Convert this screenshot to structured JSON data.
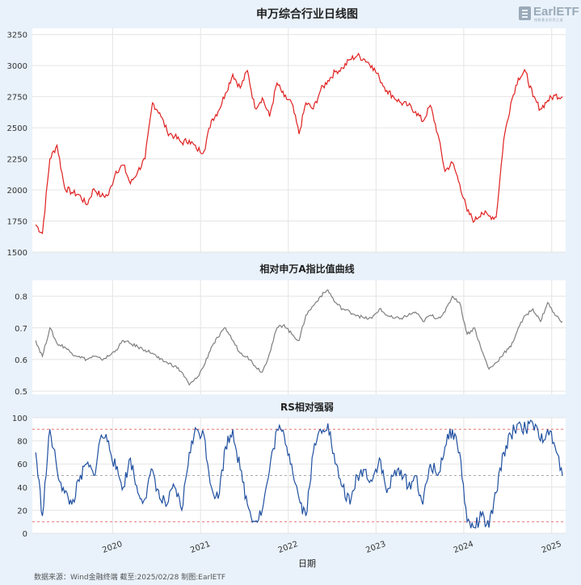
{
  "logo": {
    "name": "EarlETF",
    "tagline": "指数基金投资之道"
  },
  "footer": {
    "text": "数据来源：Wind金融终端 截至:2025/02/28 制图:EarlETF"
  },
  "chart_data": [
    {
      "type": "line",
      "title": "申万综合行业日线图",
      "ylim": [
        1500,
        3300
      ],
      "yticks": [
        1500,
        1750,
        2000,
        2250,
        2500,
        2750,
        3000,
        3250
      ],
      "color": "#e02020",
      "grid": true,
      "x_range": [
        "2019-02-01",
        "2025-02-28"
      ],
      "x": [
        "2019-02",
        "2019-03",
        "2019-04",
        "2019-05",
        "2019-06",
        "2019-07",
        "2019-08",
        "2019-09",
        "2019-10",
        "2019-11",
        "2019-12",
        "2020-01",
        "2020-02",
        "2020-03",
        "2020-04",
        "2020-05",
        "2020-06",
        "2020-07",
        "2020-08",
        "2020-09",
        "2020-10",
        "2020-11",
        "2020-12",
        "2021-01",
        "2021-02",
        "2021-03",
        "2021-04",
        "2021-05",
        "2021-06",
        "2021-07",
        "2021-08",
        "2021-09",
        "2021-10",
        "2021-11",
        "2021-12",
        "2022-01",
        "2022-02",
        "2022-03",
        "2022-04",
        "2022-05",
        "2022-06",
        "2022-07",
        "2022-08",
        "2022-09",
        "2022-10",
        "2022-11",
        "2022-12",
        "2023-01",
        "2023-02",
        "2023-03",
        "2023-04",
        "2023-05",
        "2023-06",
        "2023-07",
        "2023-08",
        "2023-09",
        "2023-10",
        "2023-11",
        "2023-12",
        "2024-01",
        "2024-02",
        "2024-03",
        "2024-04",
        "2024-05",
        "2024-06",
        "2024-07",
        "2024-08",
        "2024-09",
        "2024-10",
        "2024-11",
        "2024-12",
        "2025-01",
        "2025-02"
      ],
      "values": [
        1720,
        1650,
        2250,
        2360,
        2020,
        1980,
        1960,
        1880,
        2010,
        1950,
        1960,
        2150,
        2200,
        2050,
        2150,
        2250,
        2700,
        2620,
        2470,
        2430,
        2380,
        2400,
        2330,
        2310,
        2560,
        2630,
        2780,
        2930,
        2820,
        2960,
        2660,
        2740,
        2590,
        2860,
        2750,
        2700,
        2450,
        2700,
        2650,
        2800,
        2880,
        2950,
        2980,
        3050,
        3080,
        3050,
        3000,
        2900,
        2800,
        2750,
        2700,
        2680,
        2630,
        2550,
        2680,
        2450,
        2150,
        2220,
        2050,
        1830,
        1750,
        1820,
        1790,
        1780,
        2400,
        2700,
        2900,
        2950,
        2750,
        2650,
        2720,
        2760,
        2750
      ]
    },
    {
      "type": "line",
      "title": "相对申万A指比值曲线",
      "ylim": [
        0.49,
        0.85
      ],
      "yticks": [
        0.5,
        0.6,
        0.7,
        0.8
      ],
      "color": "#7f7f7f",
      "grid": true,
      "x_range": [
        "2019-02-01",
        "2025-02-28"
      ],
      "x": [
        "2019-02",
        "2019-03",
        "2019-04",
        "2019-05",
        "2019-06",
        "2019-07",
        "2019-08",
        "2019-09",
        "2019-10",
        "2019-11",
        "2019-12",
        "2020-01",
        "2020-02",
        "2020-03",
        "2020-04",
        "2020-05",
        "2020-06",
        "2020-07",
        "2020-08",
        "2020-09",
        "2020-10",
        "2020-11",
        "2020-12",
        "2021-01",
        "2021-02",
        "2021-03",
        "2021-04",
        "2021-05",
        "2021-06",
        "2021-07",
        "2021-08",
        "2021-09",
        "2021-10",
        "2021-11",
        "2021-12",
        "2022-01",
        "2022-02",
        "2022-03",
        "2022-04",
        "2022-05",
        "2022-06",
        "2022-07",
        "2022-08",
        "2022-09",
        "2022-10",
        "2022-11",
        "2022-12",
        "2023-01",
        "2023-02",
        "2023-03",
        "2023-04",
        "2023-05",
        "2023-06",
        "2023-07",
        "2023-08",
        "2023-09",
        "2023-10",
        "2023-11",
        "2023-12",
        "2024-01",
        "2024-02",
        "2024-03",
        "2024-04",
        "2024-05",
        "2024-06",
        "2024-07",
        "2024-08",
        "2024-09",
        "2024-10",
        "2024-11",
        "2024-12",
        "2025-01",
        "2025-02"
      ],
      "values": [
        0.66,
        0.61,
        0.7,
        0.65,
        0.64,
        0.62,
        0.61,
        0.6,
        0.61,
        0.6,
        0.61,
        0.63,
        0.66,
        0.65,
        0.64,
        0.63,
        0.62,
        0.6,
        0.59,
        0.58,
        0.56,
        0.52,
        0.54,
        0.58,
        0.64,
        0.67,
        0.7,
        0.66,
        0.62,
        0.61,
        0.58,
        0.56,
        0.62,
        0.7,
        0.71,
        0.68,
        0.66,
        0.74,
        0.77,
        0.8,
        0.82,
        0.78,
        0.76,
        0.75,
        0.74,
        0.73,
        0.73,
        0.76,
        0.74,
        0.73,
        0.73,
        0.74,
        0.75,
        0.72,
        0.74,
        0.73,
        0.75,
        0.8,
        0.78,
        0.68,
        0.7,
        0.63,
        0.57,
        0.59,
        0.62,
        0.64,
        0.7,
        0.74,
        0.76,
        0.72,
        0.78,
        0.74,
        0.72
      ]
    },
    {
      "type": "line",
      "title": "RS相对强弱",
      "ylim": [
        0,
        100
      ],
      "yticks": [
        0,
        20,
        40,
        60,
        80,
        100
      ],
      "color": "#2050a0",
      "grid": true,
      "reference_lines": [
        {
          "value": 90,
          "color": "#e87070"
        },
        {
          "value": 50,
          "color": "#aaaaaa"
        },
        {
          "value": 10,
          "color": "#e87070"
        }
      ],
      "xlabel": "日期",
      "x_tick_labels": [
        "2020",
        "2021",
        "2022",
        "2023",
        "2024",
        "2025"
      ],
      "x_range": [
        "2019-02-01",
        "2025-02-28"
      ],
      "x": [
        "2019-02",
        "2019-03",
        "2019-04",
        "2019-05",
        "2019-06",
        "2019-07",
        "2019-08",
        "2019-09",
        "2019-10",
        "2019-11",
        "2019-12",
        "2020-01",
        "2020-02",
        "2020-03",
        "2020-04",
        "2020-05",
        "2020-06",
        "2020-07",
        "2020-08",
        "2020-09",
        "2020-10",
        "2020-11",
        "2020-12",
        "2021-01",
        "2021-02",
        "2021-03",
        "2021-04",
        "2021-05",
        "2021-06",
        "2021-07",
        "2021-08",
        "2021-09",
        "2021-10",
        "2021-11",
        "2021-12",
        "2022-01",
        "2022-02",
        "2022-03",
        "2022-04",
        "2022-05",
        "2022-06",
        "2022-07",
        "2022-08",
        "2022-09",
        "2022-10",
        "2022-11",
        "2022-12",
        "2023-01",
        "2023-02",
        "2023-03",
        "2023-04",
        "2023-05",
        "2023-06",
        "2023-07",
        "2023-08",
        "2023-09",
        "2023-10",
        "2023-11",
        "2023-12",
        "2024-01",
        "2024-02",
        "2024-03",
        "2024-04",
        "2024-05",
        "2024-06",
        "2024-07",
        "2024-08",
        "2024-09",
        "2024-10",
        "2024-11",
        "2024-12",
        "2025-01",
        "2025-02"
      ],
      "values": [
        70,
        15,
        90,
        55,
        35,
        25,
        45,
        60,
        50,
        85,
        80,
        55,
        40,
        65,
        35,
        30,
        55,
        30,
        25,
        40,
        20,
        70,
        90,
        85,
        40,
        30,
        75,
        90,
        55,
        25,
        10,
        20,
        55,
        90,
        85,
        60,
        30,
        15,
        70,
        90,
        95,
        60,
        40,
        25,
        50,
        55,
        45,
        65,
        35,
        50,
        55,
        40,
        50,
        25,
        60,
        50,
        75,
        90,
        70,
        10,
        5,
        15,
        5,
        35,
        70,
        85,
        95,
        90,
        95,
        80,
        90,
        75,
        50
      ]
    }
  ]
}
